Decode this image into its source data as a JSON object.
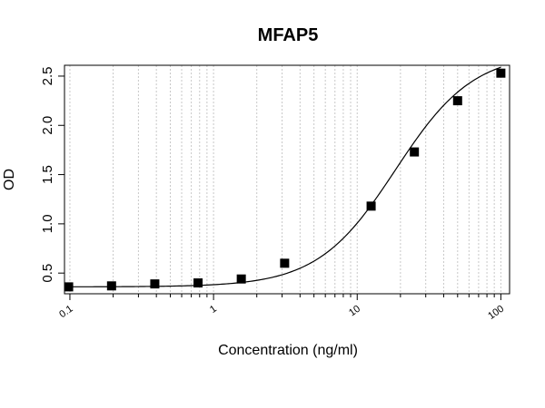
{
  "chart_data": {
    "type": "scatter",
    "title": "MFAP5",
    "xlabel": "Concentration (ng/ml)",
    "ylabel": "OD",
    "x_scale": "log",
    "xlim": [
      0.0917,
      115
    ],
    "ylim": [
      0.29,
      2.61
    ],
    "x_ticks": [
      0.1,
      1,
      10,
      100
    ],
    "x_tick_labels": [
      "0.1",
      "1",
      "10",
      "100"
    ],
    "y_ticks": [
      0.5,
      1.0,
      1.5,
      2.0,
      2.5
    ],
    "y_tick_labels": [
      "0.5",
      "1.0",
      "1.5",
      "2.0",
      "2.5"
    ],
    "grid": "vertical dotted at log minor ticks",
    "series": [
      {
        "marker": "square",
        "x": [
          0.098,
          0.195,
          0.39,
          0.78,
          1.56,
          3.125,
          12.5,
          25,
          50,
          100
        ],
        "y": [
          0.36,
          0.37,
          0.39,
          0.4,
          0.44,
          0.6,
          1.18,
          1.73,
          2.25,
          2.53
        ]
      }
    ],
    "fit_curve": {
      "model": "4PL",
      "bottom": 0.36,
      "top": 2.74,
      "ec50": 18.5,
      "hill": 1.6
    }
  }
}
